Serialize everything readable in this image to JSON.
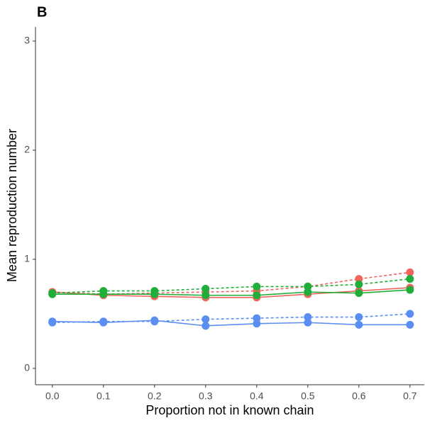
{
  "chart_data": {
    "type": "line",
    "title": "B",
    "x_label": "Proportion not in known chain",
    "y_label": "Mean reproduction number",
    "x": [
      0,
      0.1,
      0.2,
      0.3,
      0.4,
      0.5,
      0.6,
      0.7
    ],
    "series": [
      {
        "color": "#f0665e",
        "dash": false,
        "values": [
          0.7,
          0.67,
          0.66,
          0.65,
          0.65,
          0.68,
          0.71,
          0.74
        ]
      },
      {
        "color": "#f0665e",
        "dash": true,
        "values": [
          0.7,
          0.68,
          0.69,
          0.7,
          0.71,
          0.75,
          0.82,
          0.88
        ]
      },
      {
        "color": "#5b8ef2",
        "dash": false,
        "values": [
          0.43,
          0.42,
          0.44,
          0.39,
          0.41,
          0.42,
          0.4,
          0.4
        ]
      },
      {
        "color": "#5b8ef2",
        "dash": true,
        "values": [
          0.42,
          0.43,
          0.43,
          0.45,
          0.46,
          0.47,
          0.47,
          0.5
        ]
      },
      {
        "color": "#1fae3a",
        "dash": false,
        "values": [
          0.68,
          0.68,
          0.68,
          0.67,
          0.67,
          0.7,
          0.69,
          0.72
        ]
      },
      {
        "color": "#1fae3a",
        "dash": true,
        "values": [
          0.69,
          0.71,
          0.71,
          0.73,
          0.75,
          0.75,
          0.77,
          0.82
        ]
      }
    ],
    "xlim": [
      -0.033,
      0.728
    ],
    "ylim": [
      -0.15,
      3.13
    ],
    "xticks": [
      {
        "value": 0,
        "label": "0.0"
      },
      0.1,
      0.2,
      0.3,
      0.4,
      0.5,
      0.6,
      0.7
    ],
    "yticks": [
      0,
      1,
      2,
      3
    ],
    "grid": false
  }
}
